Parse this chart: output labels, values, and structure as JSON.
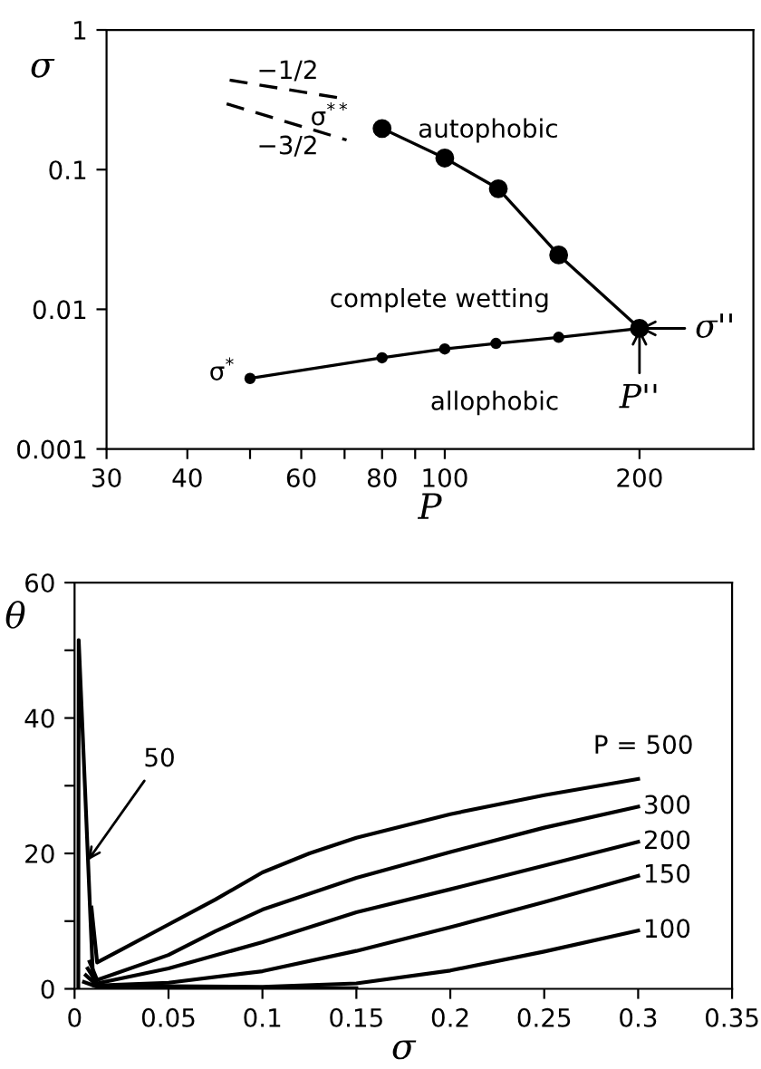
{
  "chart_data": [
    {
      "type": "line",
      "xlabel": "P",
      "ylabel": "σ",
      "log": "xy",
      "xlim": [
        30,
        300
      ],
      "ylim": [
        0.001,
        1
      ],
      "xticks": [
        30,
        40,
        {
          "value": 50,
          "label": null
        },
        60,
        {
          "value": 70,
          "label": null
        },
        80,
        {
          "value": 90,
          "label": null
        },
        100,
        200
      ],
      "yticks": [
        0.001,
        0.01,
        0.1,
        1
      ],
      "grid": false,
      "legend": false,
      "series": [
        {
          "color": "#000000",
          "marker": "circle",
          "line_style": "solid",
          "x": [
            80,
            100,
            121,
            150,
            200
          ],
          "values": [
            0.197,
            0.121,
            0.073,
            0.0245,
            0.0073
          ]
        },
        {
          "color": "#000000",
          "marker": "circle",
          "line_style": "solid",
          "x": [
            50,
            80,
            100,
            120,
            150,
            200
          ],
          "values": [
            0.0032,
            0.0045,
            0.0052,
            0.0057,
            0.0063,
            0.0073
          ]
        },
        {
          "color": "#000000",
          "marker": "none",
          "line_style": "dashed",
          "x": [
            46.5,
            71
          ],
          "values": [
            0.437,
            0.318
          ]
        },
        {
          "color": "#000000",
          "marker": "none",
          "line_style": "dashed",
          "x": [
            46,
            70.5
          ],
          "values": [
            0.296,
            0.163
          ]
        }
      ],
      "annotations": [
        {
          "text": "σ$^{**}$",
          "x": 80,
          "y": 0.197
        },
        {
          "text": "σ$^{*}$",
          "x": 50,
          "y": 0.0032
        },
        {
          "text": "σ''",
          "x": 200,
          "y": 0.0073
        },
        {
          "text": "P''",
          "x": 200,
          "y": 0.0073
        },
        "autophobic",
        "complete wetting",
        "allophobic",
        "−1/2",
        "−3/2"
      ]
    },
    {
      "type": "line",
      "xlabel": "σ",
      "ylabel": "θ",
      "xlim": [
        0,
        0.35
      ],
      "ylim": [
        0,
        60
      ],
      "xticks": [
        0,
        0.05,
        0.1,
        0.15,
        0.2,
        0.25,
        0.3,
        0.35
      ],
      "yticks": [
        0,
        {
          "value": 10,
          "label": null
        },
        20,
        {
          "value": 30,
          "label": null
        },
        40,
        {
          "value": 50,
          "label": null
        },
        60
      ],
      "grid": false,
      "legend": false,
      "series": [
        {
          "name": "P = 500",
          "color": "#000000",
          "x": [
            0.009,
            0.012,
            0.025,
            0.05,
            0.075,
            0.1,
            0.125,
            0.15,
            0.2,
            0.25,
            0.3
          ],
          "values": [
            12,
            3.9,
            5.8,
            9.5,
            13.2,
            17.2,
            20,
            22.3,
            25.8,
            28.6,
            31
          ]
        },
        {
          "name": "300",
          "color": "#000000",
          "x": [
            0.008,
            0.012,
            0.05,
            0.075,
            0.1,
            0.15,
            0.2,
            0.25,
            0.3
          ],
          "values": [
            4,
            1.3,
            5,
            8.5,
            11.7,
            16.4,
            20.2,
            23.8,
            26.9
          ]
        },
        {
          "name": "200",
          "color": "#000000",
          "x": [
            0.007,
            0.012,
            0.05,
            0.1,
            0.15,
            0.2,
            0.25,
            0.3
          ],
          "values": [
            3,
            0.8,
            3,
            6.9,
            11.3,
            14.7,
            18.2,
            21.7
          ]
        },
        {
          "name": "150",
          "color": "#000000",
          "x": [
            0.006,
            0.012,
            0.05,
            0.1,
            0.15,
            0.2,
            0.25,
            0.3
          ],
          "values": [
            2,
            0.5,
            0.9,
            2.6,
            5.6,
            9.1,
            12.8,
            16.7
          ]
        },
        {
          "name": "100",
          "color": "#000000",
          "x": [
            0.005,
            0.012,
            0.05,
            0.1,
            0.15,
            0.2,
            0.25,
            0.3
          ],
          "values": [
            1,
            0.3,
            0.4,
            0.3,
            0.8,
            2.7,
            5.5,
            8.6
          ]
        },
        {
          "color": "#000000",
          "x": [
            0.002,
            0.0022,
            0.0055,
            0.0085,
            0.01,
            0.05,
            0.1,
            0.15
          ],
          "values": [
            0,
            51.5,
            30,
            10,
            0.5,
            0.3,
            0.2,
            0.1
          ]
        }
      ],
      "annotations": [
        {
          "text": "50",
          "x": 0.0072,
          "y": 19
        }
      ]
    }
  ]
}
